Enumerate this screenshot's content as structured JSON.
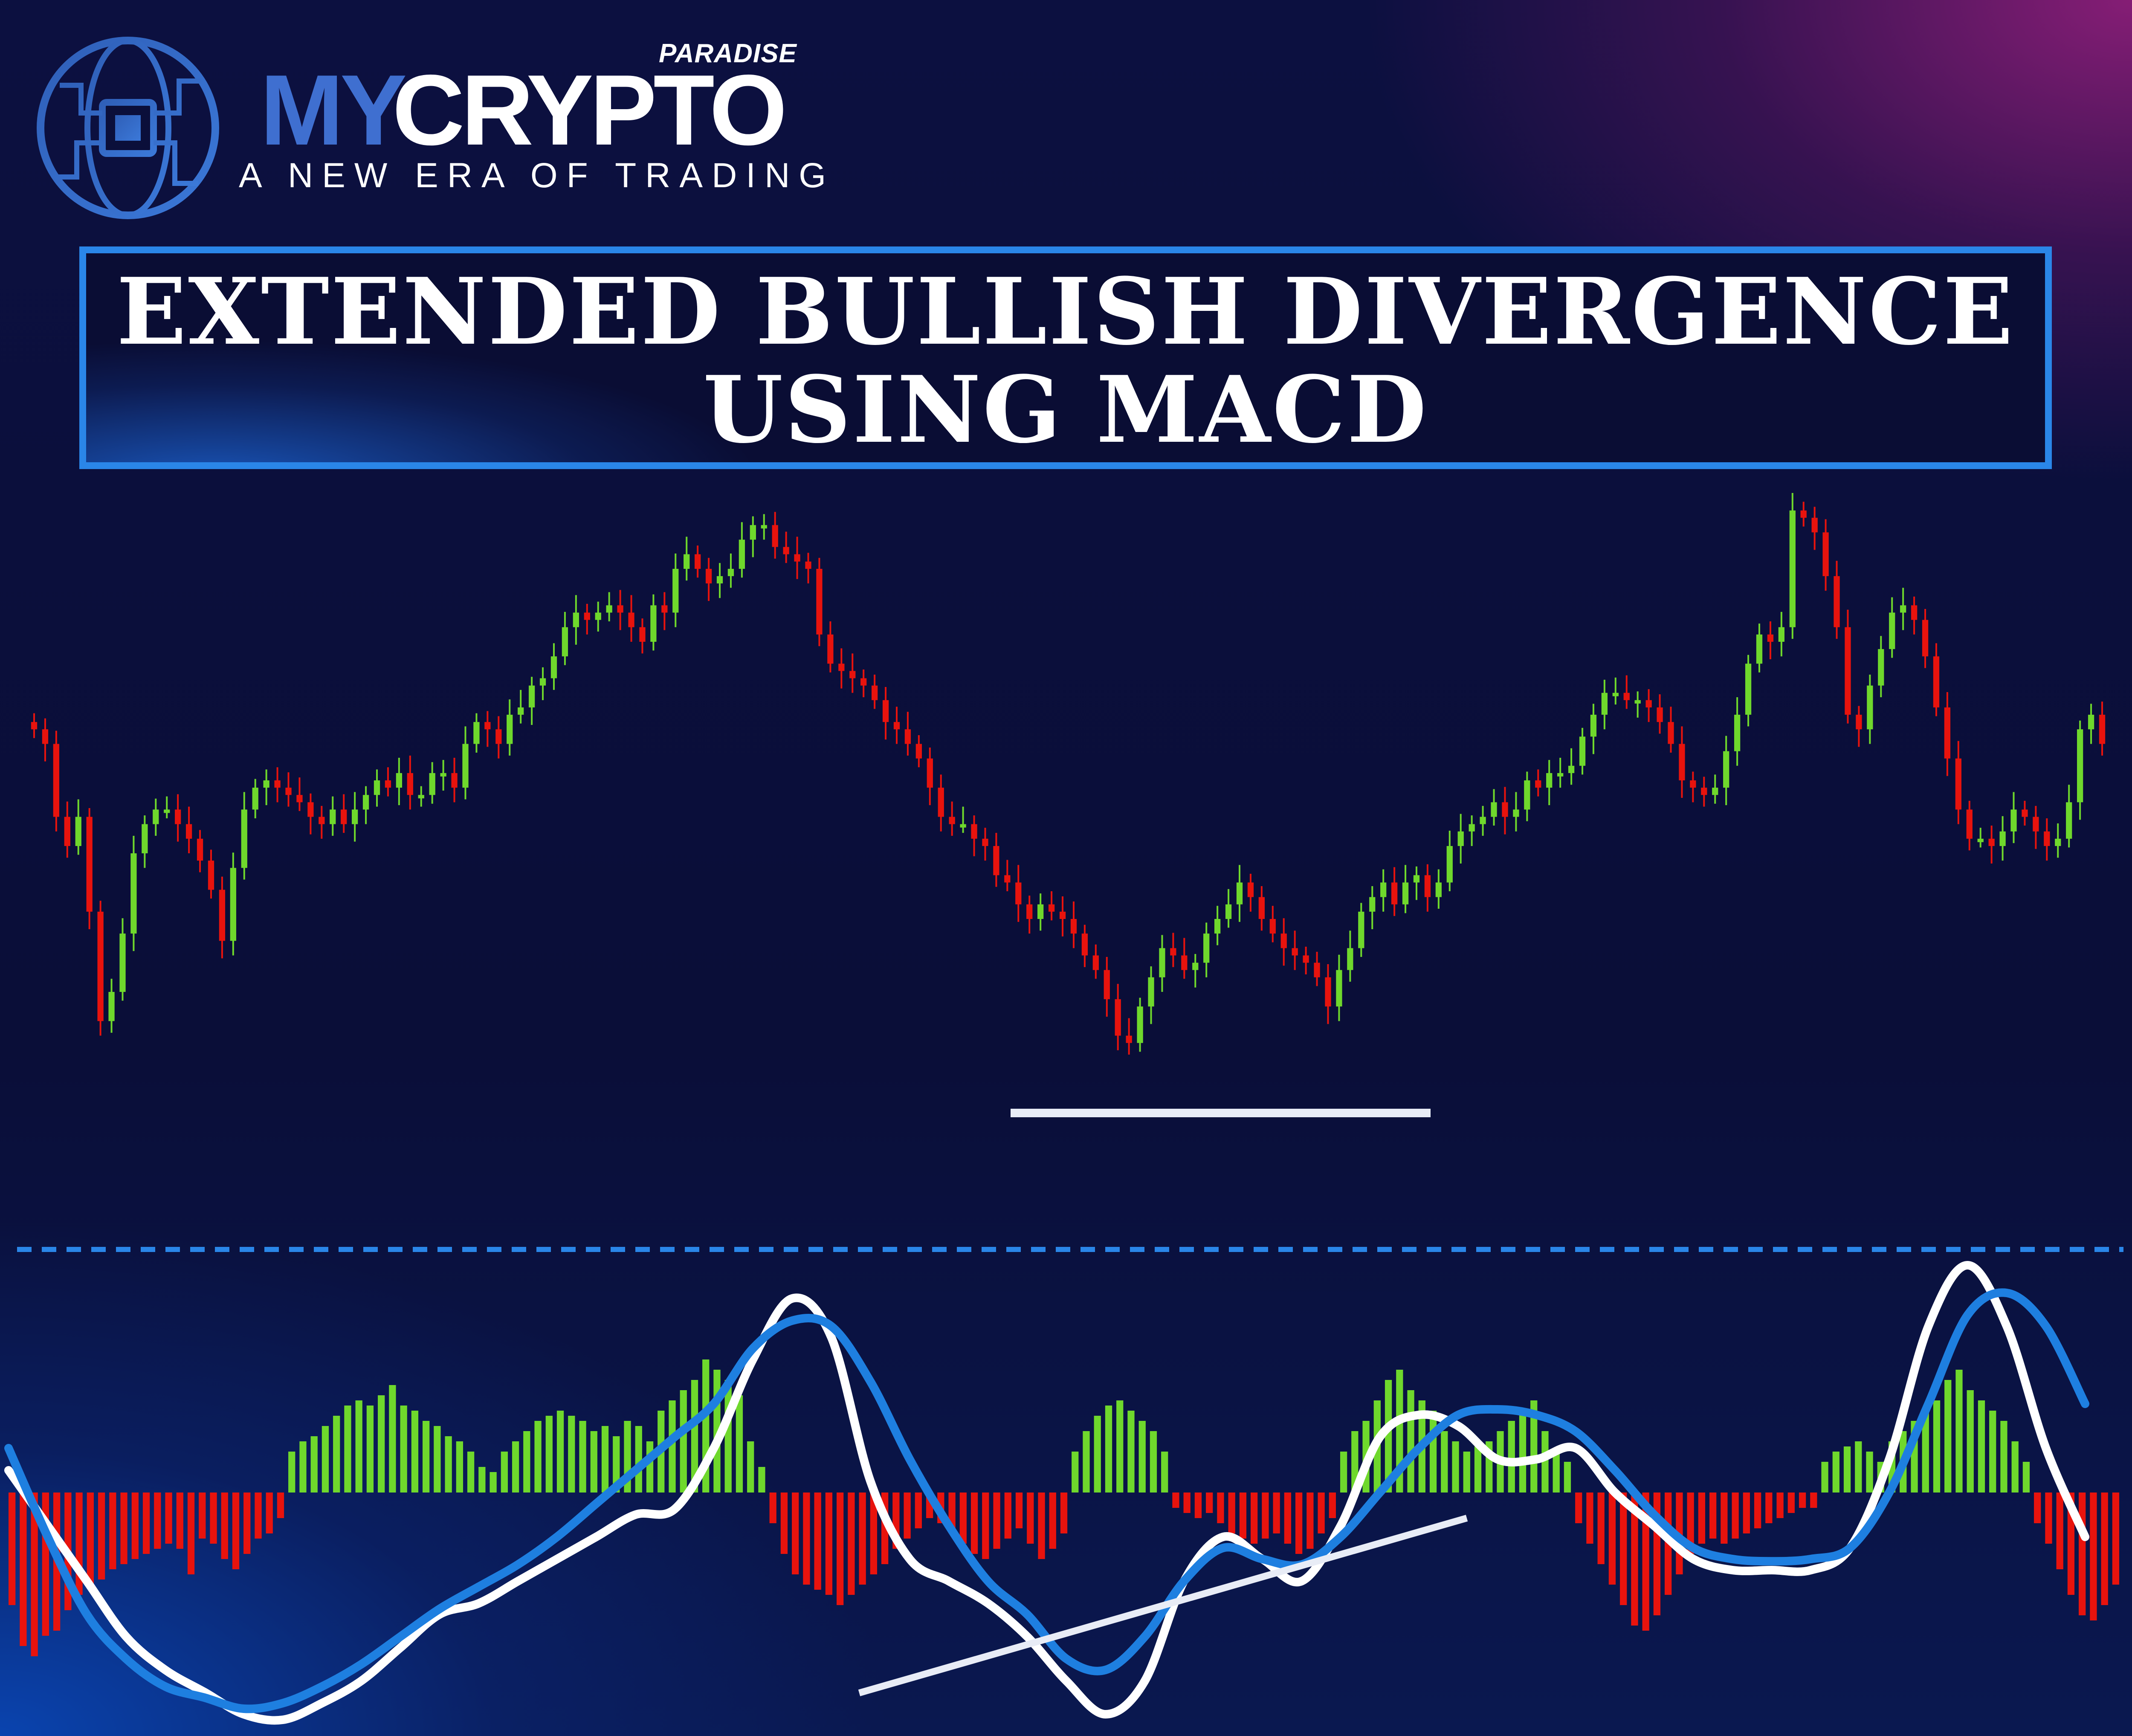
{
  "brand": {
    "paradise": "PARADISE",
    "name_part1": "MY",
    "name_part2": "CRYPTO",
    "tagline": "A NEW ERA OF TRADING",
    "globe_icon": "globe-chip-icon"
  },
  "title": {
    "line1": "EXTENDED BULLISH DIVERGENCE",
    "line2": "USING MACD"
  },
  "colors": {
    "background": "#0b0f3a",
    "bull": "#6fd82c",
    "bear": "#e8130d",
    "accent": "#2a86e8",
    "macd_line": "#ffffff",
    "signal_line": "#1e7fe0"
  },
  "chart_data": [
    {
      "type": "candlestick",
      "title": "",
      "note": "price series without printed axes; values in relative price units",
      "closes": [
        70,
        68,
        58,
        54,
        58,
        45,
        30,
        34,
        42,
        53,
        57,
        59,
        59,
        57,
        55,
        52,
        48,
        41,
        51,
        59,
        62,
        63,
        62,
        61,
        60,
        58,
        57,
        59,
        57,
        59,
        61,
        63,
        62,
        64,
        61,
        61,
        64,
        64,
        62,
        68,
        71,
        70,
        68,
        72,
        73,
        76,
        77,
        80,
        84,
        86,
        85,
        86,
        87,
        86,
        84,
        82,
        87,
        86,
        92,
        94,
        92,
        90,
        91,
        92,
        96,
        98,
        98,
        95,
        94,
        93,
        92,
        83,
        79,
        78,
        77,
        76,
        74,
        71,
        70,
        68,
        66,
        62,
        58,
        57,
        57,
        55,
        54,
        50,
        49,
        46,
        44,
        46,
        45,
        44,
        42,
        39,
        37,
        33,
        28,
        27,
        32,
        36,
        40,
        39,
        37,
        38,
        42,
        44,
        46,
        49,
        47,
        44,
        42,
        40,
        39,
        38,
        36,
        32,
        37,
        40,
        45,
        47,
        49,
        46,
        49,
        50,
        47,
        49,
        54,
        56,
        57,
        58,
        60,
        58,
        59,
        63,
        62,
        64,
        64,
        65,
        69,
        72,
        75,
        75,
        74,
        74,
        73,
        71,
        68,
        63,
        62,
        61,
        62,
        67,
        72,
        79,
        83,
        82,
        84,
        100,
        99,
        97,
        91,
        84,
        72,
        70,
        76,
        81,
        86,
        87,
        85,
        80,
        73,
        66,
        59,
        55,
        55,
        54,
        56,
        59,
        58,
        56,
        54,
        55,
        60,
        70,
        72,
        68
      ],
      "support_line": "horizontal support line under the two price lows"
    },
    {
      "type": "macd",
      "title": "",
      "note": "MACD panel; zero line marked by the histogram baseline; dashed reference line above",
      "histogram": [
        -22,
        -30,
        -32,
        -28,
        -27,
        -23,
        -20,
        -18,
        -17,
        -15,
        -14,
        -13,
        -12,
        -11,
        -10,
        -11,
        -16,
        -9,
        -10,
        -13,
        -15,
        -12,
        -9,
        -8,
        -5,
        8,
        10,
        11,
        13,
        15,
        17,
        18,
        17,
        19,
        21,
        17,
        16,
        14,
        13,
        11,
        10,
        8,
        5,
        4,
        8,
        10,
        12,
        14,
        15,
        16,
        15,
        14,
        12,
        13,
        11,
        14,
        13,
        10,
        16,
        18,
        20,
        22,
        26,
        24,
        22,
        19,
        10,
        5,
        -6,
        -12,
        -16,
        -18,
        -19,
        -20,
        -22,
        -20,
        -18,
        -16,
        -14,
        -11,
        -9,
        -7,
        -5,
        -6,
        -8,
        -10,
        -12,
        -13,
        -11,
        -9,
        -7,
        -10,
        -13,
        -11,
        -8,
        8,
        12,
        15,
        17,
        18,
        16,
        14,
        12,
        8,
        -3,
        -4,
        -5,
        -4,
        -6,
        -8,
        -9,
        -10,
        -9,
        -8,
        -10,
        -12,
        -11,
        -8,
        -5,
        8,
        12,
        14,
        18,
        22,
        24,
        20,
        18,
        16,
        12,
        10,
        8,
        9,
        10,
        12,
        14,
        16,
        18,
        12,
        8,
        6,
        -6,
        -10,
        -14,
        -18,
        -22,
        -26,
        -27,
        -24,
        -20,
        -16,
        -12,
        -10,
        -9,
        -10,
        -9,
        -8,
        -7,
        -6,
        -5,
        -4,
        -3,
        -3,
        6,
        8,
        9,
        10,
        8,
        6,
        10,
        12,
        14,
        16,
        18,
        22,
        24,
        20,
        18,
        16,
        14,
        10,
        6,
        -6,
        -10,
        -15,
        -20,
        -24,
        -25,
        -22,
        -18
      ],
      "macd_line": [
        20,
        -30,
        -80,
        -130,
        -160,
        -180,
        -200,
        -205,
        -190,
        -170,
        -140,
        -110,
        -100,
        -80,
        -60,
        -40,
        -20,
        -15,
        40,
        120,
        175,
        140,
        10,
        -60,
        -80,
        -100,
        -130,
        -170,
        -200,
        -170,
        -80,
        -40,
        -60,
        -80,
        -30,
        50,
        70,
        60,
        30,
        30,
        40,
        0,
        -30,
        -60,
        -70,
        -70,
        -70,
        -50,
        30,
        150,
        205,
        150,
        40,
        -40
      ],
      "signal_line": [
        40,
        -40,
        -110,
        -150,
        -175,
        -185,
        -195,
        -190,
        -175,
        -155,
        -130,
        -105,
        -85,
        -65,
        -40,
        -10,
        20,
        50,
        80,
        130,
        155,
        150,
        100,
        30,
        -30,
        -80,
        -110,
        -150,
        -160,
        -130,
        -80,
        -50,
        -60,
        -65,
        -40,
        0,
        40,
        70,
        75,
        70,
        55,
        20,
        -20,
        -50,
        -60,
        -62,
        -60,
        -50,
        0,
        80,
        160,
        180,
        150,
        80
      ],
      "divergence_line": "rising trendline under the two MACD lows"
    }
  ]
}
